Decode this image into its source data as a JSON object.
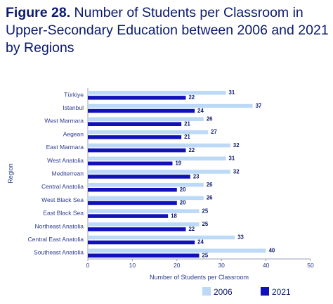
{
  "title": {
    "figure": "Figure 28.",
    "text": "Number of Students per Classroom in Upper-Secondary Education between 2006 and 2021 by Regions"
  },
  "colors": {
    "s2006": "#bcd9f7",
    "s2021": "#1111bb",
    "text": "#0a1a6e",
    "grid": "#d9d9d9"
  },
  "chart_data": {
    "type": "bar",
    "orientation": "horizontal",
    "xlabel": "Number of Students per Classroom",
    "ylabel": "Region",
    "xlim": [
      0,
      50
    ],
    "xticks": [
      0,
      10,
      20,
      30,
      40,
      50
    ],
    "grid": false,
    "legend_position": "bottom-right",
    "categories": [
      "Türkiye",
      "Istanbul",
      "West Marmara",
      "Aegean",
      "East Marmara",
      "West Anatolia",
      "Mediterrean",
      "Central Anatolia",
      "West Black Sea",
      "East Black Sea",
      "Northeast Anatolia",
      "Central East Anatolia",
      "Southeast Anatolia"
    ],
    "series": [
      {
        "name": "2006",
        "values": [
          31,
          37,
          26,
          27,
          32,
          31,
          32,
          26,
          26,
          25,
          25,
          33,
          40
        ]
      },
      {
        "name": "2021",
        "values": [
          22,
          24,
          21,
          21,
          22,
          19,
          23,
          20,
          20,
          18,
          22,
          24,
          25
        ]
      }
    ]
  }
}
